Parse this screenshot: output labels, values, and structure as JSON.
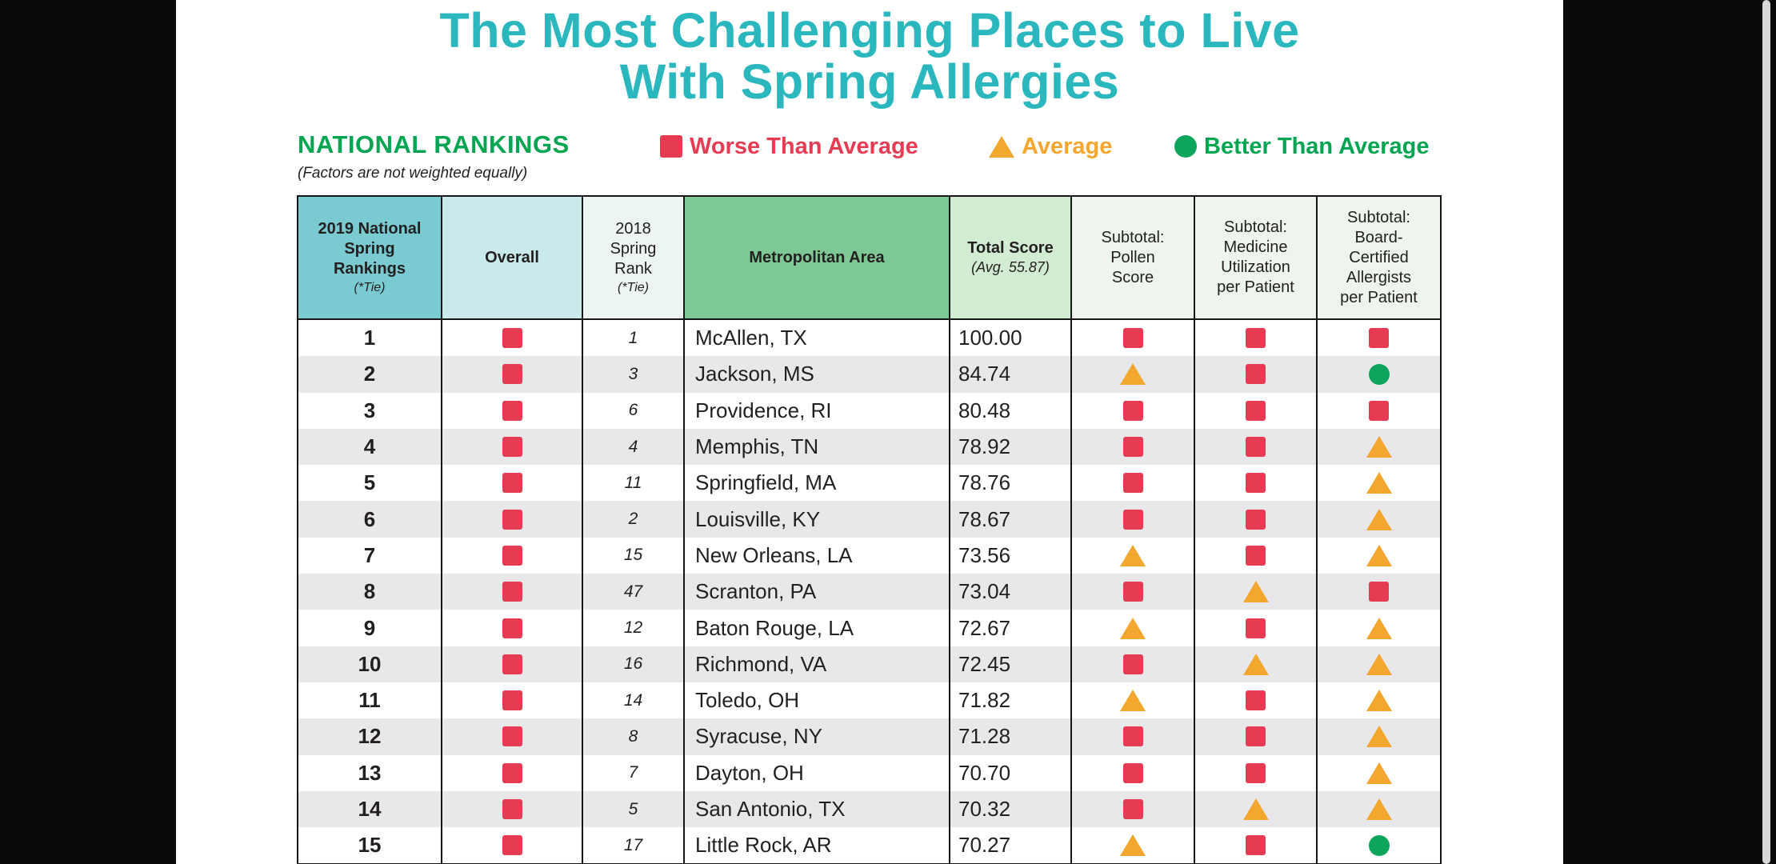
{
  "colors": {
    "teal_title": "#2BB7BE",
    "green_accent": "#00A551",
    "red_status": "#E63B52",
    "orange_status": "#F3A72E",
    "green_status": "#0DA55B",
    "header_teal": "#79CAD1",
    "header_teal_light": "#C9E9EB",
    "header_neutral": "#EDF5F1",
    "header_green": "#7EC896",
    "header_green_light": "#D2EBD3",
    "header_green_pale": "#EDF5EC",
    "row_alt": "#E8E8EA",
    "text": "#231F20"
  },
  "title": {
    "line1": "The Most Challenging Places to Live",
    "line2": "With Spring Allergies"
  },
  "legend": {
    "heading": "NATIONAL RANKINGS",
    "subheading": "(Factors are not weighted equally)",
    "items": [
      {
        "name": "worse",
        "label": "Worse Than Average"
      },
      {
        "name": "average",
        "label": "Average"
      },
      {
        "name": "better",
        "label": "Better Than Average"
      }
    ]
  },
  "table": {
    "headers": [
      {
        "title": "2019 National\nSpring\nRankings",
        "note": "(*Tie)"
      },
      {
        "title": "Overall"
      },
      {
        "title": "2018\nSpring\nRank",
        "note": "(*Tie)"
      },
      {
        "title": "Metropolitan Area"
      },
      {
        "title": "Total Score",
        "note": "(Avg. 55.87)"
      },
      {
        "title": "Subtotal:\nPollen\nScore"
      },
      {
        "title": "Subtotal:\nMedicine\nUtilization\nper Patient"
      },
      {
        "title": "Subtotal:\nBoard-\nCertified\nAllergists\nper Patient"
      }
    ],
    "rows": [
      {
        "rank": "1",
        "overall": "worse",
        "prev": "1",
        "metro": "McAllen, TX",
        "score": "100.00",
        "pollen": "worse",
        "medicine": "worse",
        "allergists": "worse"
      },
      {
        "rank": "2",
        "overall": "worse",
        "prev": "3",
        "metro": "Jackson, MS",
        "score": "84.74",
        "pollen": "average",
        "medicine": "worse",
        "allergists": "better"
      },
      {
        "rank": "3",
        "overall": "worse",
        "prev": "6",
        "metro": "Providence, RI",
        "score": "80.48",
        "pollen": "worse",
        "medicine": "worse",
        "allergists": "worse"
      },
      {
        "rank": "4",
        "overall": "worse",
        "prev": "4",
        "metro": "Memphis, TN",
        "score": "78.92",
        "pollen": "worse",
        "medicine": "worse",
        "allergists": "average"
      },
      {
        "rank": "5",
        "overall": "worse",
        "prev": "11",
        "metro": "Springfield, MA",
        "score": "78.76",
        "pollen": "worse",
        "medicine": "worse",
        "allergists": "average"
      },
      {
        "rank": "6",
        "overall": "worse",
        "prev": "2",
        "metro": "Louisville, KY",
        "score": "78.67",
        "pollen": "worse",
        "medicine": "worse",
        "allergists": "average"
      },
      {
        "rank": "7",
        "overall": "worse",
        "prev": "15",
        "metro": "New Orleans, LA",
        "score": "73.56",
        "pollen": "average",
        "medicine": "worse",
        "allergists": "average"
      },
      {
        "rank": "8",
        "overall": "worse",
        "prev": "47",
        "metro": "Scranton, PA",
        "score": "73.04",
        "pollen": "worse",
        "medicine": "average",
        "allergists": "worse"
      },
      {
        "rank": "9",
        "overall": "worse",
        "prev": "12",
        "metro": "Baton Rouge, LA",
        "score": "72.67",
        "pollen": "average",
        "medicine": "worse",
        "allergists": "average"
      },
      {
        "rank": "10",
        "overall": "worse",
        "prev": "16",
        "metro": "Richmond, VA",
        "score": "72.45",
        "pollen": "worse",
        "medicine": "average",
        "allergists": "average"
      },
      {
        "rank": "11",
        "overall": "worse",
        "prev": "14",
        "metro": "Toledo, OH",
        "score": "71.82",
        "pollen": "average",
        "medicine": "worse",
        "allergists": "average"
      },
      {
        "rank": "12",
        "overall": "worse",
        "prev": "8",
        "metro": "Syracuse, NY",
        "score": "71.28",
        "pollen": "worse",
        "medicine": "worse",
        "allergists": "average"
      },
      {
        "rank": "13",
        "overall": "worse",
        "prev": "7",
        "metro": "Dayton, OH",
        "score": "70.70",
        "pollen": "worse",
        "medicine": "worse",
        "allergists": "average"
      },
      {
        "rank": "14",
        "overall": "worse",
        "prev": "5",
        "metro": "San Antonio, TX",
        "score": "70.32",
        "pollen": "worse",
        "medicine": "average",
        "allergists": "average"
      },
      {
        "rank": "15",
        "overall": "worse",
        "prev": "17",
        "metro": "Little Rock, AR",
        "score": "70.27",
        "pollen": "average",
        "medicine": "worse",
        "allergists": "better"
      }
    ]
  }
}
